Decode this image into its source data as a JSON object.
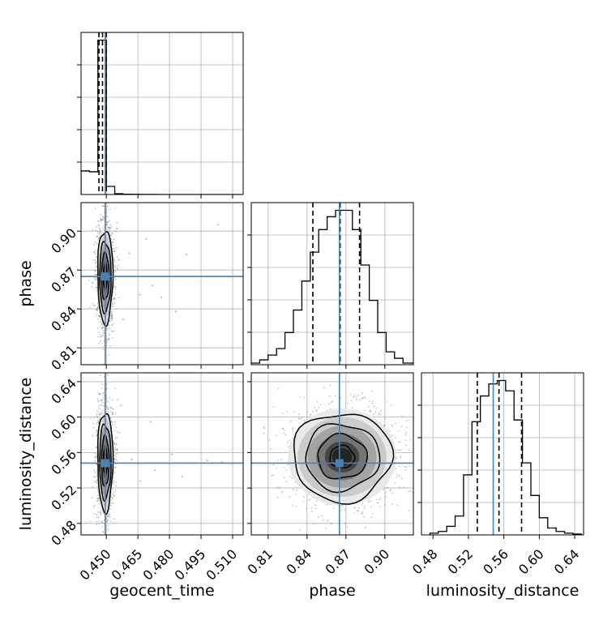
{
  "chart_data": {
    "type": "corner",
    "grid": true,
    "parameters": [
      {
        "name": "geocent_time",
        "xlabel": "geocent_time",
        "lim": [
          0.438,
          0.515
        ],
        "ticks": [
          0.45,
          0.465,
          0.48,
          0.495,
          0.51
        ],
        "tick_labels": [
          "0.450",
          "0.465",
          "0.480",
          "0.495",
          "0.510"
        ],
        "truth": 0.4495,
        "quantiles": [
          0.4465,
          0.4482,
          0.45
        ],
        "hist": {
          "edges": [
            0.438,
            0.442,
            0.446,
            0.45,
            0.454,
            0.458,
            0.462,
            0.466,
            0.47,
            0.474,
            0.478,
            0.482,
            0.486,
            0.49,
            0.494,
            0.498,
            0.502,
            0.506,
            0.51,
            0.514
          ],
          "counts": [
            29,
            28,
            190,
            10,
            1,
            0.4,
            0.2,
            0.1,
            0.1,
            0,
            0,
            0,
            0,
            0,
            0,
            0,
            0,
            0,
            0
          ]
        }
      },
      {
        "name": "phase",
        "xlabel": "phase",
        "ylabel": "phase",
        "lim": [
          0.797,
          0.922
        ],
        "ticks": [
          0.81,
          0.84,
          0.87,
          0.9
        ],
        "tick_labels": [
          "0.81",
          "0.84",
          "0.87",
          "0.90"
        ],
        "truth": 0.865,
        "quantiles": [
          0.8445,
          0.8655,
          0.8805
        ],
        "hist": {
          "edges": [
            0.797,
            0.8035,
            0.81,
            0.8165,
            0.823,
            0.8295,
            0.836,
            0.8425,
            0.849,
            0.8555,
            0.862,
            0.8685,
            0.875,
            0.8815,
            0.888,
            0.8945,
            0.901,
            0.9075,
            0.914,
            0.922
          ],
          "counts": [
            1,
            3,
            6,
            10,
            20,
            34,
            52,
            70,
            84,
            92,
            96,
            96,
            84,
            62,
            40,
            20,
            8,
            4,
            1
          ]
        }
      },
      {
        "name": "luminosity_distance",
        "xlabel": "luminosity_distance",
        "ylabel": "luminosity_distance",
        "lim": [
          0.467,
          0.65
        ],
        "ticks": [
          0.48,
          0.52,
          0.56,
          0.6,
          0.64
        ],
        "tick_labels": [
          "0.48",
          "0.52",
          "0.56",
          "0.60",
          "0.64"
        ],
        "truth": 0.548,
        "quantiles": [
          0.53,
          0.5545,
          0.58
        ],
        "hist": {
          "edges": [
            0.4765,
            0.486,
            0.4955,
            0.505,
            0.5145,
            0.524,
            0.5335,
            0.543,
            0.5525,
            0.562,
            0.5715,
            0.581,
            0.5905,
            0.6,
            0.6095,
            0.619,
            0.6285,
            0.638,
            0.6475
          ],
          "counts": [
            1,
            2,
            5,
            11,
            35,
            66,
            81,
            88,
            90,
            84,
            67,
            42,
            23,
            10,
            4,
            2,
            1,
            0.5
          ]
        }
      }
    ],
    "pairs": [
      {
        "x": "geocent_time",
        "y": "phase",
        "center": [
          0.4495,
          0.865
        ],
        "spread": [
          0.0018,
          0.018
        ],
        "outliers": [
          [
            0.456,
            0.878
          ],
          [
            0.461,
            0.883
          ],
          [
            0.472,
            0.858
          ],
          [
            0.488,
            0.882
          ],
          [
            0.503,
            0.905
          ],
          [
            0.466,
            0.851
          ],
          [
            0.455,
            0.902
          ],
          [
            0.458,
            0.832
          ],
          [
            0.483,
            0.838
          ],
          [
            0.469,
            0.894
          ],
          [
            0.476,
            0.849
          ]
        ]
      },
      {
        "x": "geocent_time",
        "y": "luminosity_distance",
        "center": [
          0.4495,
          0.55
        ],
        "spread": [
          0.0018,
          0.028
        ],
        "outliers": [
          [
            0.455,
            0.563
          ],
          [
            0.462,
            0.552
          ],
          [
            0.471,
            0.595
          ],
          [
            0.481,
            0.558
          ],
          [
            0.498,
            0.551
          ],
          [
            0.505,
            0.549
          ],
          [
            0.457,
            0.613
          ],
          [
            0.466,
            0.528
          ],
          [
            0.473,
            0.54
          ],
          [
            0.486,
            0.533
          ]
        ]
      },
      {
        "x": "phase",
        "y": "luminosity_distance",
        "center": [
          0.867,
          0.555
        ],
        "spread": [
          0.019,
          0.025
        ],
        "outliers": []
      }
    ]
  }
}
